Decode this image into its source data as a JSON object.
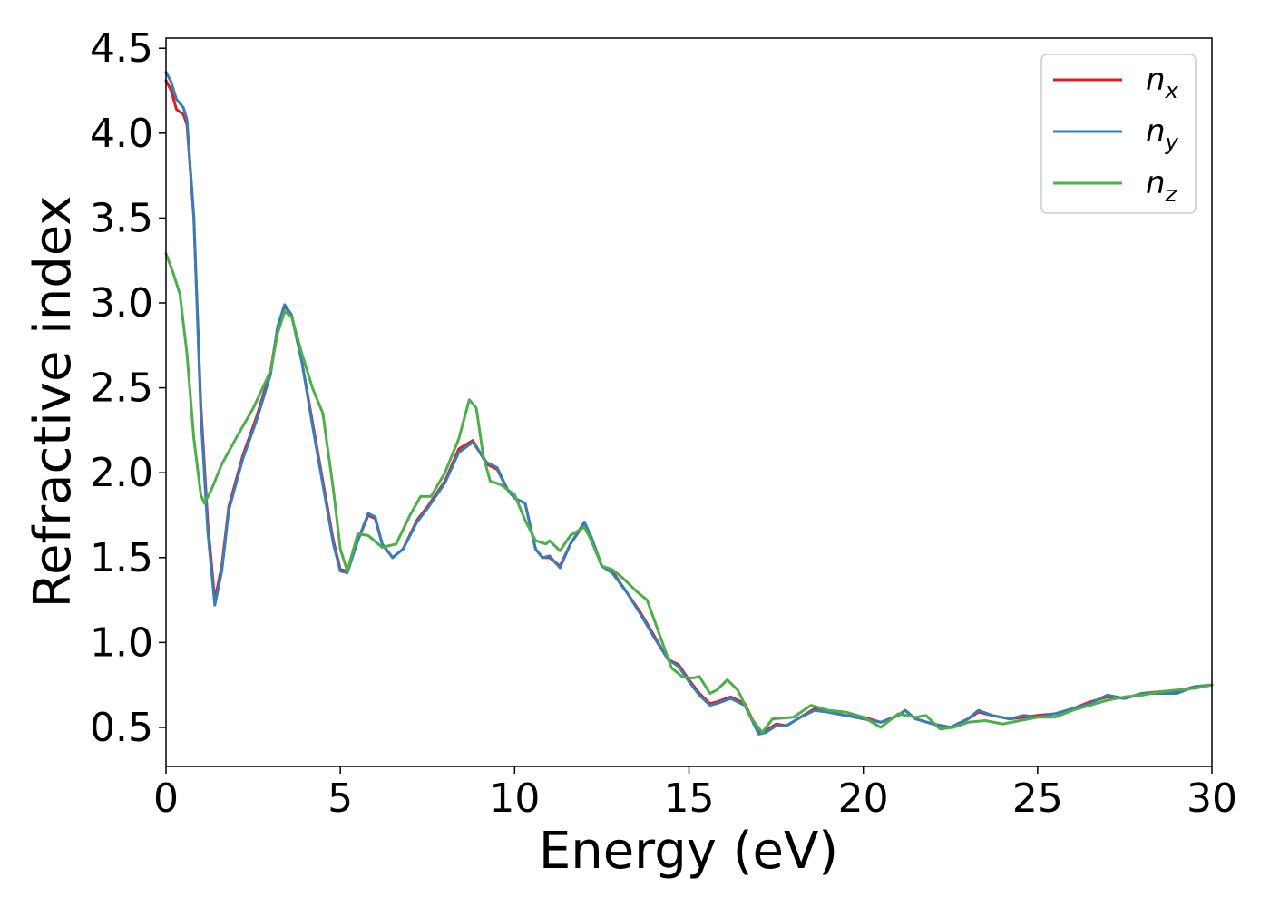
{
  "chart_data": {
    "type": "line",
    "title": "",
    "xlabel": "Energy (eV)",
    "ylabel": "Refractive index",
    "xlim": [
      0,
      30
    ],
    "ylim": [
      0.27,
      4.56
    ],
    "xticks": [
      "0",
      "5",
      "10",
      "15",
      "20",
      "25",
      "30"
    ],
    "yticks": [
      "0.5",
      "1.0",
      "1.5",
      "2.0",
      "2.5",
      "3.0",
      "3.5",
      "4.0",
      "4.5"
    ],
    "grid": false,
    "legend_position": "top-right",
    "series": [
      {
        "name": "n_x",
        "label_base": "n",
        "label_sub": "x",
        "color": "#e41a1c",
        "points": [
          [
            0,
            4.31
          ],
          [
            0.15,
            4.25
          ],
          [
            0.3,
            4.14
          ],
          [
            0.5,
            4.11
          ],
          [
            0.6,
            4.05
          ],
          [
            0.8,
            3.5
          ],
          [
            1.0,
            2.4
          ],
          [
            1.2,
            1.7
          ],
          [
            1.4,
            1.25
          ],
          [
            1.6,
            1.45
          ],
          [
            1.8,
            1.8
          ],
          [
            2.2,
            2.1
          ],
          [
            2.6,
            2.33
          ],
          [
            3.0,
            2.6
          ],
          [
            3.2,
            2.85
          ],
          [
            3.4,
            2.98
          ],
          [
            3.6,
            2.93
          ],
          [
            3.9,
            2.65
          ],
          [
            4.2,
            2.3
          ],
          [
            4.5,
            1.95
          ],
          [
            4.8,
            1.6
          ],
          [
            5.0,
            1.43
          ],
          [
            5.2,
            1.42
          ],
          [
            5.5,
            1.6
          ],
          [
            5.8,
            1.75
          ],
          [
            6.0,
            1.73
          ],
          [
            6.2,
            1.58
          ],
          [
            6.5,
            1.5
          ],
          [
            6.8,
            1.55
          ],
          [
            7.2,
            1.72
          ],
          [
            7.5,
            1.8
          ],
          [
            8.0,
            1.95
          ],
          [
            8.4,
            2.14
          ],
          [
            8.8,
            2.19
          ],
          [
            9.0,
            2.12
          ],
          [
            9.2,
            2.05
          ],
          [
            9.5,
            2.02
          ],
          [
            9.8,
            1.9
          ],
          [
            10.0,
            1.85
          ],
          [
            10.3,
            1.82
          ],
          [
            10.6,
            1.55
          ],
          [
            10.8,
            1.5
          ],
          [
            11.0,
            1.5
          ],
          [
            11.3,
            1.45
          ],
          [
            11.6,
            1.58
          ],
          [
            12.0,
            1.7
          ],
          [
            12.2,
            1.62
          ],
          [
            12.5,
            1.45
          ],
          [
            12.8,
            1.42
          ],
          [
            13.2,
            1.3
          ],
          [
            13.6,
            1.18
          ],
          [
            14.0,
            1.04
          ],
          [
            14.4,
            0.9
          ],
          [
            14.7,
            0.87
          ],
          [
            15.0,
            0.78
          ],
          [
            15.3,
            0.7
          ],
          [
            15.6,
            0.64
          ],
          [
            15.8,
            0.65
          ],
          [
            16.2,
            0.68
          ],
          [
            16.6,
            0.64
          ],
          [
            17.0,
            0.47
          ],
          [
            17.2,
            0.48
          ],
          [
            17.5,
            0.52
          ],
          [
            17.8,
            0.51
          ],
          [
            18.2,
            0.56
          ],
          [
            18.6,
            0.61
          ],
          [
            19.0,
            0.59
          ],
          [
            19.5,
            0.57
          ],
          [
            20.0,
            0.56
          ],
          [
            20.5,
            0.53
          ],
          [
            21.0,
            0.57
          ],
          [
            21.2,
            0.6
          ],
          [
            21.5,
            0.55
          ],
          [
            22.0,
            0.52
          ],
          [
            22.5,
            0.5
          ],
          [
            23.0,
            0.55
          ],
          [
            23.3,
            0.59
          ],
          [
            23.7,
            0.57
          ],
          [
            24.2,
            0.55
          ],
          [
            24.6,
            0.56
          ],
          [
            25.0,
            0.57
          ],
          [
            25.5,
            0.58
          ],
          [
            26.0,
            0.61
          ],
          [
            26.5,
            0.65
          ],
          [
            27.0,
            0.68
          ],
          [
            27.5,
            0.67
          ],
          [
            28.0,
            0.7
          ],
          [
            28.5,
            0.71
          ],
          [
            29.0,
            0.71
          ],
          [
            29.5,
            0.74
          ],
          [
            30.0,
            0.75
          ]
        ]
      },
      {
        "name": "n_y",
        "label_base": "n",
        "label_sub": "y",
        "color": "#377eb8",
        "points": [
          [
            0,
            4.36
          ],
          [
            0.15,
            4.3
          ],
          [
            0.3,
            4.2
          ],
          [
            0.5,
            4.15
          ],
          [
            0.6,
            4.08
          ],
          [
            0.8,
            3.5
          ],
          [
            1.0,
            2.35
          ],
          [
            1.2,
            1.65
          ],
          [
            1.4,
            1.22
          ],
          [
            1.6,
            1.42
          ],
          [
            1.8,
            1.78
          ],
          [
            2.2,
            2.08
          ],
          [
            2.6,
            2.31
          ],
          [
            3.0,
            2.58
          ],
          [
            3.2,
            2.86
          ],
          [
            3.4,
            2.99
          ],
          [
            3.6,
            2.93
          ],
          [
            3.9,
            2.65
          ],
          [
            4.2,
            2.28
          ],
          [
            4.5,
            1.93
          ],
          [
            4.8,
            1.58
          ],
          [
            5.0,
            1.42
          ],
          [
            5.2,
            1.41
          ],
          [
            5.5,
            1.6
          ],
          [
            5.8,
            1.76
          ],
          [
            6.0,
            1.74
          ],
          [
            6.2,
            1.58
          ],
          [
            6.5,
            1.5
          ],
          [
            6.8,
            1.55
          ],
          [
            7.2,
            1.71
          ],
          [
            7.5,
            1.79
          ],
          [
            8.0,
            1.94
          ],
          [
            8.4,
            2.12
          ],
          [
            8.8,
            2.18
          ],
          [
            9.0,
            2.12
          ],
          [
            9.2,
            2.06
          ],
          [
            9.5,
            2.03
          ],
          [
            9.8,
            1.9
          ],
          [
            10.0,
            1.85
          ],
          [
            10.3,
            1.82
          ],
          [
            10.6,
            1.55
          ],
          [
            10.8,
            1.5
          ],
          [
            11.0,
            1.51
          ],
          [
            11.3,
            1.44
          ],
          [
            11.6,
            1.58
          ],
          [
            12.0,
            1.71
          ],
          [
            12.2,
            1.62
          ],
          [
            12.5,
            1.45
          ],
          [
            12.8,
            1.41
          ],
          [
            13.2,
            1.3
          ],
          [
            13.6,
            1.17
          ],
          [
            14.0,
            1.03
          ],
          [
            14.4,
            0.9
          ],
          [
            14.7,
            0.86
          ],
          [
            15.0,
            0.77
          ],
          [
            15.3,
            0.69
          ],
          [
            15.6,
            0.63
          ],
          [
            15.8,
            0.64
          ],
          [
            16.2,
            0.67
          ],
          [
            16.6,
            0.63
          ],
          [
            17.0,
            0.46
          ],
          [
            17.2,
            0.47
          ],
          [
            17.5,
            0.51
          ],
          [
            17.8,
            0.51
          ],
          [
            18.2,
            0.56
          ],
          [
            18.6,
            0.6
          ],
          [
            19.0,
            0.59
          ],
          [
            19.5,
            0.57
          ],
          [
            20.0,
            0.55
          ],
          [
            20.5,
            0.53
          ],
          [
            21.0,
            0.57
          ],
          [
            21.2,
            0.6
          ],
          [
            21.5,
            0.55
          ],
          [
            22.0,
            0.52
          ],
          [
            22.5,
            0.5
          ],
          [
            23.0,
            0.55
          ],
          [
            23.3,
            0.6
          ],
          [
            23.7,
            0.57
          ],
          [
            24.2,
            0.55
          ],
          [
            24.6,
            0.57
          ],
          [
            25.0,
            0.56
          ],
          [
            25.5,
            0.58
          ],
          [
            26.0,
            0.61
          ],
          [
            26.5,
            0.64
          ],
          [
            27.0,
            0.69
          ],
          [
            27.5,
            0.67
          ],
          [
            28.0,
            0.7
          ],
          [
            28.5,
            0.7
          ],
          [
            29.0,
            0.7
          ],
          [
            29.5,
            0.74
          ],
          [
            30.0,
            0.75
          ]
        ]
      },
      {
        "name": "n_z",
        "label_base": "n",
        "label_sub": "z",
        "color": "#4daf4a",
        "points": [
          [
            0,
            3.29
          ],
          [
            0.2,
            3.18
          ],
          [
            0.4,
            3.05
          ],
          [
            0.6,
            2.7
          ],
          [
            0.8,
            2.2
          ],
          [
            1.0,
            1.87
          ],
          [
            1.1,
            1.82
          ],
          [
            1.3,
            1.9
          ],
          [
            1.6,
            2.05
          ],
          [
            2.0,
            2.2
          ],
          [
            2.5,
            2.38
          ],
          [
            3.0,
            2.6
          ],
          [
            3.2,
            2.82
          ],
          [
            3.4,
            2.95
          ],
          [
            3.6,
            2.92
          ],
          [
            3.9,
            2.7
          ],
          [
            4.2,
            2.5
          ],
          [
            4.5,
            2.35
          ],
          [
            4.8,
            1.9
          ],
          [
            5.0,
            1.55
          ],
          [
            5.2,
            1.42
          ],
          [
            5.5,
            1.64
          ],
          [
            5.8,
            1.63
          ],
          [
            6.2,
            1.56
          ],
          [
            6.6,
            1.58
          ],
          [
            7.0,
            1.75
          ],
          [
            7.3,
            1.86
          ],
          [
            7.6,
            1.86
          ],
          [
            8.0,
            2.0
          ],
          [
            8.4,
            2.2
          ],
          [
            8.7,
            2.43
          ],
          [
            8.9,
            2.38
          ],
          [
            9.1,
            2.1
          ],
          [
            9.3,
            1.95
          ],
          [
            9.6,
            1.93
          ],
          [
            10.0,
            1.87
          ],
          [
            10.3,
            1.72
          ],
          [
            10.6,
            1.6
          ],
          [
            10.9,
            1.58
          ],
          [
            11.0,
            1.6
          ],
          [
            11.3,
            1.54
          ],
          [
            11.6,
            1.63
          ],
          [
            12.0,
            1.68
          ],
          [
            12.2,
            1.6
          ],
          [
            12.5,
            1.45
          ],
          [
            12.8,
            1.43
          ],
          [
            13.1,
            1.38
          ],
          [
            13.5,
            1.3
          ],
          [
            13.8,
            1.25
          ],
          [
            14.2,
            1.02
          ],
          [
            14.5,
            0.85
          ],
          [
            14.8,
            0.8
          ],
          [
            15.1,
            0.79
          ],
          [
            15.3,
            0.8
          ],
          [
            15.6,
            0.7
          ],
          [
            15.8,
            0.72
          ],
          [
            16.1,
            0.78
          ],
          [
            16.4,
            0.72
          ],
          [
            16.8,
            0.55
          ],
          [
            17.1,
            0.47
          ],
          [
            17.4,
            0.55
          ],
          [
            18.0,
            0.56
          ],
          [
            18.5,
            0.63
          ],
          [
            19.0,
            0.6
          ],
          [
            19.5,
            0.59
          ],
          [
            20.0,
            0.56
          ],
          [
            20.5,
            0.5
          ],
          [
            21.0,
            0.58
          ],
          [
            21.5,
            0.56
          ],
          [
            21.8,
            0.57
          ],
          [
            22.2,
            0.49
          ],
          [
            22.6,
            0.5
          ],
          [
            23.0,
            0.53
          ],
          [
            23.5,
            0.54
          ],
          [
            24.0,
            0.52
          ],
          [
            24.5,
            0.54
          ],
          [
            25.0,
            0.56
          ],
          [
            25.5,
            0.56
          ],
          [
            26.0,
            0.6
          ],
          [
            26.5,
            0.63
          ],
          [
            27.0,
            0.66
          ],
          [
            27.5,
            0.68
          ],
          [
            28.0,
            0.69
          ],
          [
            28.5,
            0.71
          ],
          [
            29.0,
            0.72
          ],
          [
            29.5,
            0.73
          ],
          [
            30.0,
            0.75
          ]
        ]
      }
    ]
  }
}
